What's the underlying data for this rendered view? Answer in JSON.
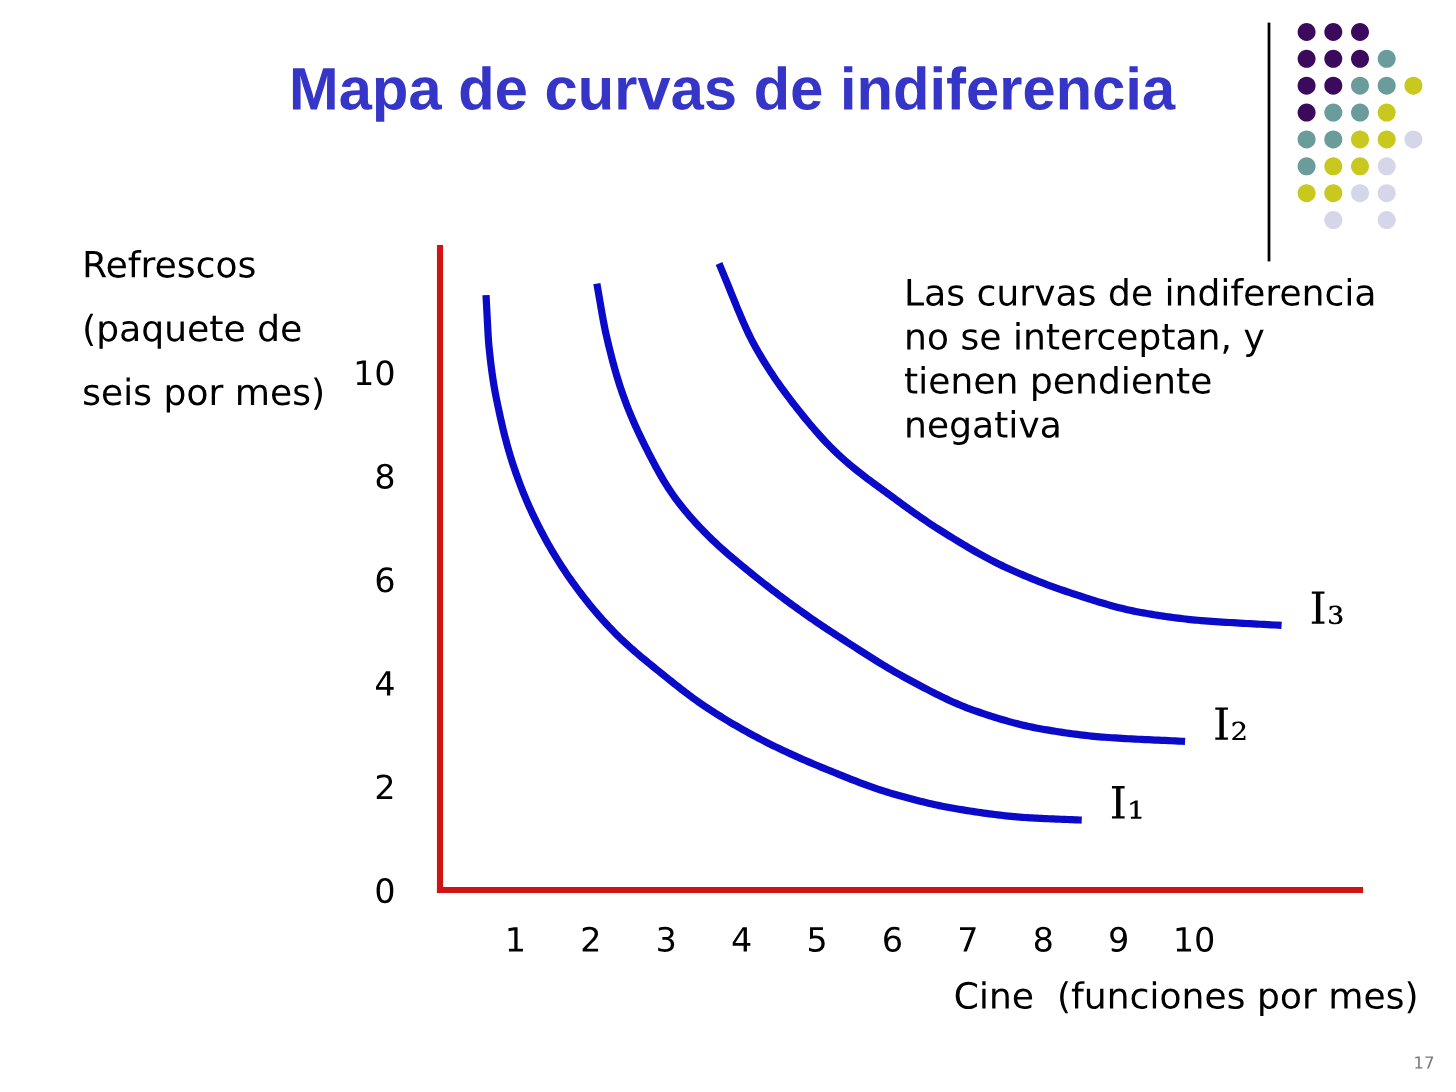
{
  "chart_data": {
    "type": "line",
    "title": "Mapa de curvas de indiferencia",
    "xlabel": "Cine  (funciones por mes)",
    "ylabel": "Refrescos\n(paquete de\nseis por mes)",
    "annotations": [
      "Las curvas de indiferencia\nno se interceptan, y\ntienen pendiente\nnegativa",
      "17"
    ],
    "series": [
      {
        "name": "I₁",
        "color": "#0a0ac8",
        "x": [
          0.61,
          0.65,
          0.79,
          1.01,
          1.36,
          1.8,
          2.33,
          2.94,
          3.52,
          4.32,
          5.11,
          6.0,
          6.88,
          7.76,
          8.51
        ],
        "values": [
          11.49,
          10.49,
          9.2,
          8.04,
          6.88,
          5.86,
          4.95,
          4.18,
          3.54,
          2.86,
          2.34,
          1.86,
          1.56,
          1.4,
          1.35
        ]
      },
      {
        "name": "I₂",
        "color": "#0a0ac8",
        "x": [
          2.08,
          2.2,
          2.42,
          2.77,
          3.09,
          3.53,
          4.15,
          4.85,
          5.29,
          6.17,
          7.06,
          7.94,
          8.82,
          9.88
        ],
        "values": [
          11.71,
          10.75,
          9.59,
          8.43,
          7.63,
          6.88,
          6.09,
          5.32,
          4.89,
          4.1,
          3.48,
          3.12,
          2.95,
          2.87
        ]
      },
      {
        "name": "I₃",
        "color": "#0a0ac8",
        "x": [
          3.7,
          4.16,
          4.71,
          5.29,
          6.0,
          6.61,
          7.49,
          8.38,
          9.26,
          10.05,
          11.16
        ],
        "values": [
          12.1,
          10.55,
          9.35,
          8.4,
          7.59,
          6.97,
          6.24,
          5.73,
          5.37,
          5.21,
          5.11
        ]
      }
    ],
    "xlim": [
      0,
      12.2
    ],
    "ylim": [
      0,
      12.4
    ],
    "xticks": [
      1,
      2,
      3,
      4,
      5,
      6,
      7,
      8,
      9,
      10
    ],
    "yticks": [
      0,
      2,
      4,
      6,
      8,
      10
    ],
    "line_style": "solid"
  }
}
